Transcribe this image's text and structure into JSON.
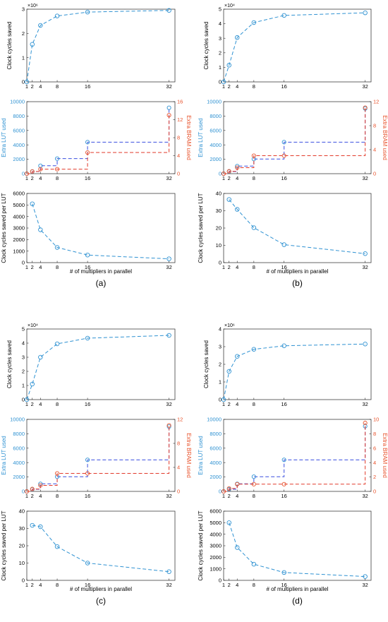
{
  "colors": {
    "primary": "#2f92d2",
    "secondary": "#e8522b",
    "lut_line": "#3a4fe0",
    "bram_line": "#e23a2a",
    "axis": "#262626",
    "text": "#000000"
  },
  "chart_data": [
    {
      "panel": "a",
      "caption": "(a)",
      "type": "line",
      "x_tick_labels": [
        "1",
        "2",
        "4",
        "8",
        "16",
        "32"
      ],
      "xlabel": "# of multipliers in parallel",
      "subplots": [
        {
          "key": "saved",
          "ylabel": "Clock cycles saved",
          "exponent_label": "×10⁶",
          "ylim": [
            0,
            3
          ],
          "yticks": [
            "0",
            "1",
            "2",
            "3"
          ],
          "series": [
            {
              "x": [
                1,
                2,
                4,
                8,
                16,
                32
              ],
              "values": [
                0,
                1.55,
                2.33,
                2.72,
                2.88,
                2.95
              ]
            }
          ]
        },
        {
          "key": "resources",
          "type": "step",
          "ylabel_left": "Extra LUT used",
          "ylabel_right": "Extra BRAM used",
          "ylim_left": [
            0,
            10000
          ],
          "yticks_left": [
            "0",
            "2000",
            "4000",
            "6000",
            "8000",
            "10000"
          ],
          "ylim_right": [
            0,
            16
          ],
          "yticks_right": [
            "0",
            "4",
            "8",
            "12",
            "16"
          ],
          "series_left": {
            "x": [
              1,
              2,
              4,
              8,
              16,
              32
            ],
            "values": [
              0,
              290,
              1100,
              2090,
              4380,
              9150
            ]
          },
          "series_right": {
            "x": [
              1,
              2,
              4,
              8,
              16,
              32
            ],
            "values": [
              0,
              0.5,
              1,
              1,
              4.7,
              13
            ]
          }
        },
        {
          "key": "per_lut",
          "ylabel": "Clock cycles saved per LUT",
          "ylim": [
            0,
            6000
          ],
          "yticks": [
            "0",
            "1000",
            "2000",
            "3000",
            "4000",
            "5000",
            "6000"
          ],
          "series": [
            {
              "x": [
                2,
                4,
                8,
                16,
                32
              ],
              "values": [
                5100,
                2850,
                1320,
                660,
                330
              ]
            }
          ]
        }
      ]
    },
    {
      "panel": "b",
      "caption": "(b)",
      "type": "line",
      "x_tick_labels": [
        "1",
        "2",
        "4",
        "8",
        "16",
        "32"
      ],
      "xlabel": "# of multipliers in parallel",
      "subplots": [
        {
          "key": "saved",
          "ylabel": "Clock cycles saved",
          "exponent_label": "×10⁴",
          "ylim": [
            0,
            5
          ],
          "yticks": [
            "0",
            "1",
            "2",
            "3",
            "4",
            "5"
          ],
          "series": [
            {
              "x": [
                1,
                2,
                4,
                8,
                16,
                32
              ],
              "values": [
                0,
                1.15,
                3.05,
                4.08,
                4.57,
                4.75
              ]
            }
          ]
        },
        {
          "key": "resources",
          "type": "step",
          "ylabel_left": "Extra LUT used",
          "ylabel_right": "Extra BRAM used",
          "ylim_left": [
            0,
            10000
          ],
          "yticks_left": [
            "0",
            "2000",
            "4000",
            "6000",
            "8000",
            "10000"
          ],
          "ylim_right": [
            0,
            12
          ],
          "yticks_right": [
            "0",
            "4",
            "8",
            "12"
          ],
          "series_left": {
            "x": [
              1,
              2,
              4,
              8,
              16,
              32
            ],
            "values": [
              0,
              290,
              1050,
              2040,
              4380,
              9050
            ]
          },
          "series_right": {
            "x": [
              1,
              2,
              4,
              8,
              16,
              32
            ],
            "values": [
              0,
              0.4,
              1,
              3,
              3,
              11
            ]
          }
        },
        {
          "key": "per_lut",
          "ylabel": "Clock cycles saved per LUT",
          "ylim": [
            0,
            40
          ],
          "yticks": [
            "0",
            "10",
            "20",
            "30",
            "40"
          ],
          "series": [
            {
              "x": [
                2,
                4,
                8,
                16,
                32
              ],
              "values": [
                36.5,
                30.8,
                20.2,
                10.4,
                5.2
              ]
            }
          ]
        }
      ]
    },
    {
      "panel": "c",
      "caption": "(c)",
      "type": "line",
      "x_tick_labels": [
        "1",
        "2",
        "4",
        "8",
        "16",
        "32"
      ],
      "xlabel": "# of multipliers in parallel",
      "subplots": [
        {
          "key": "saved",
          "ylabel": "Clock cycles saved",
          "exponent_label": "×10⁴",
          "ylim": [
            0,
            5
          ],
          "yticks": [
            "0",
            "1",
            "2",
            "3",
            "4",
            "5"
          ],
          "series": [
            {
              "x": [
                1,
                2,
                4,
                8,
                16,
                32
              ],
              "values": [
                0,
                1.1,
                3.0,
                3.95,
                4.35,
                4.55
              ]
            }
          ]
        },
        {
          "key": "resources",
          "type": "step",
          "ylabel_left": "Extra LUT used",
          "ylabel_right": "Extra BRAM used",
          "ylim_left": [
            0,
            10000
          ],
          "yticks_left": [
            "0",
            "2000",
            "4000",
            "6000",
            "8000",
            "10000"
          ],
          "ylim_right": [
            0,
            12
          ],
          "yticks_right": [
            "0",
            "4",
            "8",
            "12"
          ],
          "series_left": {
            "x": [
              1,
              2,
              4,
              8,
              16,
              32
            ],
            "values": [
              0,
              290,
              1050,
              2040,
              4380,
              9000
            ]
          },
          "series_right": {
            "x": [
              1,
              2,
              4,
              8,
              16,
              32
            ],
            "values": [
              0,
              0.4,
              1,
              3,
              3,
              11
            ]
          }
        },
        {
          "key": "per_lut",
          "ylabel": "Clock cycles saved per LUT",
          "ylim": [
            0,
            40
          ],
          "yticks": [
            "0",
            "10",
            "20",
            "30",
            "40"
          ],
          "series": [
            {
              "x": [
                2,
                4,
                8,
                16,
                32
              ],
              "values": [
                31.8,
                31.0,
                19.5,
                10.0,
                5.0
              ]
            }
          ]
        }
      ]
    },
    {
      "panel": "d",
      "caption": "(d)",
      "type": "line",
      "x_tick_labels": [
        "1",
        "2",
        "4",
        "8",
        "16",
        "32"
      ],
      "xlabel": "# of multipliers in parallel",
      "subplots": [
        {
          "key": "saved",
          "ylabel": "Clock cycles saved",
          "exponent_label": "×10⁶",
          "ylim": [
            0,
            4
          ],
          "yticks": [
            "0",
            "1",
            "2",
            "3",
            "4"
          ],
          "series": [
            {
              "x": [
                1,
                2,
                4,
                8,
                16,
                32
              ],
              "values": [
                0,
                1.6,
                2.45,
                2.85,
                3.05,
                3.15
              ]
            }
          ]
        },
        {
          "key": "resources",
          "type": "step",
          "ylabel_left": "Extra LUT used",
          "ylabel_right": "Extra BRAM used",
          "ylim_left": [
            0,
            10000
          ],
          "yticks_left": [
            "0",
            "2000",
            "4000",
            "6000",
            "8000",
            "10000"
          ],
          "ylim_right": [
            0,
            10
          ],
          "yticks_right": [
            "0",
            "2",
            "4",
            "6",
            "8",
            "10"
          ],
          "series_left": {
            "x": [
              1,
              2,
              4,
              8,
              16,
              32
            ],
            "values": [
              0,
              290,
              1050,
              2040,
              4380,
              9050
            ]
          },
          "series_right": {
            "x": [
              1,
              2,
              4,
              8,
              16,
              32
            ],
            "values": [
              0,
              0.4,
              1,
              1,
              1,
              9.5
            ]
          }
        },
        {
          "key": "per_lut",
          "ylabel": "Clock cycles saved per LUT",
          "ylim": [
            0,
            6000
          ],
          "yticks": [
            "0",
            "1000",
            "2000",
            "3000",
            "4000",
            "5000",
            "6000"
          ],
          "series": [
            {
              "x": [
                2,
                4,
                8,
                16,
                32
              ],
              "values": [
                5000,
                2850,
                1400,
                680,
                330
              ]
            }
          ]
        }
      ]
    }
  ]
}
